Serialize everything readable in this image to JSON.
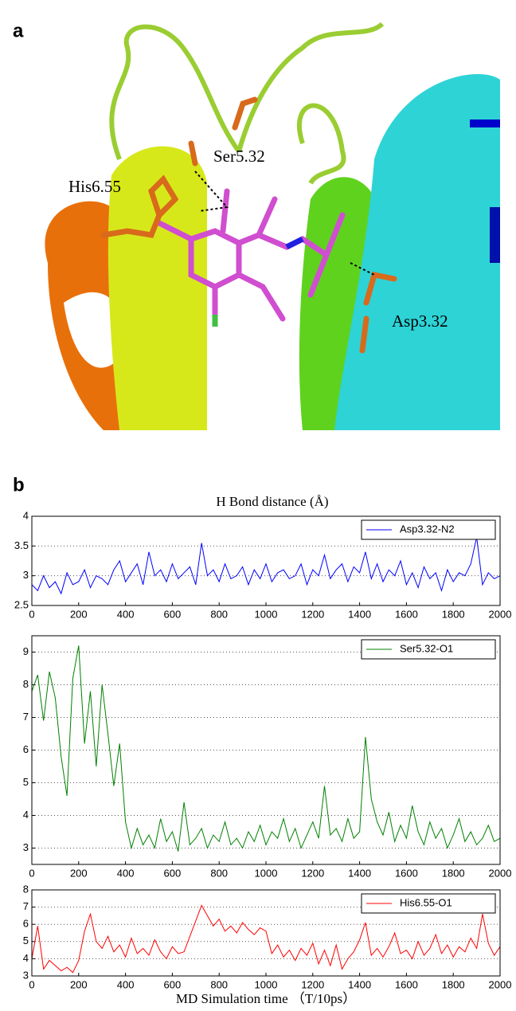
{
  "panel_a": {
    "label": "a",
    "annotations": [
      "Ser5.32",
      "His6.55",
      "Asp3.32"
    ]
  },
  "panel_b": {
    "label": "b"
  },
  "chart_data": [
    {
      "type": "line",
      "title": "H Bond distance (Å)",
      "x": [
        0,
        25,
        50,
        75,
        100,
        125,
        150,
        175,
        200,
        225,
        250,
        275,
        300,
        325,
        350,
        375,
        400,
        425,
        450,
        475,
        500,
        525,
        550,
        575,
        600,
        625,
        650,
        675,
        700,
        725,
        750,
        775,
        800,
        825,
        850,
        875,
        900,
        925,
        950,
        975,
        1000,
        1025,
        1050,
        1075,
        1100,
        1125,
        1150,
        1175,
        1200,
        1225,
        1250,
        1275,
        1300,
        1325,
        1350,
        1375,
        1400,
        1425,
        1450,
        1475,
        1500,
        1525,
        1550,
        1575,
        1600,
        1625,
        1650,
        1675,
        1700,
        1725,
        1750,
        1775,
        1800,
        1825,
        1850,
        1875,
        1900,
        1925,
        1950,
        1975,
        2000
      ],
      "xlim": [
        0,
        2000
      ],
      "xticks": [
        0,
        200,
        400,
        600,
        800,
        1000,
        1200,
        1400,
        1600,
        1800,
        2000
      ],
      "ylim": [
        2.5,
        4
      ],
      "yticks": [
        2.5,
        3,
        3.5,
        4
      ],
      "grid": true,
      "legend": "upper right",
      "series": [
        {
          "name": "Asp3.32-N2",
          "color": "#0000ff",
          "values": [
            2.85,
            2.75,
            3.0,
            2.8,
            2.9,
            2.7,
            3.05,
            2.85,
            2.9,
            3.1,
            2.8,
            3.0,
            2.95,
            2.85,
            3.1,
            3.25,
            2.9,
            3.05,
            3.2,
            2.85,
            3.4,
            3.0,
            3.1,
            2.9,
            3.2,
            2.95,
            3.05,
            3.15,
            2.85,
            3.55,
            3.0,
            3.1,
            2.9,
            3.2,
            2.95,
            3.0,
            3.15,
            2.85,
            3.1,
            2.95,
            3.2,
            2.9,
            3.05,
            3.1,
            2.95,
            3.0,
            3.2,
            2.85,
            3.1,
            3.0,
            3.35,
            2.95,
            3.1,
            3.2,
            2.9,
            3.15,
            3.05,
            3.4,
            2.95,
            3.2,
            2.9,
            3.1,
            3.0,
            3.25,
            2.85,
            3.05,
            2.8,
            3.15,
            2.95,
            3.05,
            2.75,
            3.1,
            2.9,
            3.05,
            3.0,
            3.2,
            3.65,
            2.85,
            3.05,
            2.95,
            3.0
          ]
        }
      ]
    },
    {
      "type": "line",
      "x": [
        0,
        25,
        50,
        75,
        100,
        125,
        150,
        175,
        200,
        225,
        250,
        275,
        300,
        325,
        350,
        375,
        400,
        425,
        450,
        475,
        500,
        525,
        550,
        575,
        600,
        625,
        650,
        675,
        700,
        725,
        750,
        775,
        800,
        825,
        850,
        875,
        900,
        925,
        950,
        975,
        1000,
        1025,
        1050,
        1075,
        1100,
        1125,
        1150,
        1175,
        1200,
        1225,
        1250,
        1275,
        1300,
        1325,
        1350,
        1375,
        1400,
        1425,
        1450,
        1475,
        1500,
        1525,
        1550,
        1575,
        1600,
        1625,
        1650,
        1675,
        1700,
        1725,
        1750,
        1775,
        1800,
        1825,
        1850,
        1875,
        1900,
        1925,
        1950,
        1975,
        2000
      ],
      "xlim": [
        0,
        2000
      ],
      "xticks": [
        0,
        200,
        400,
        600,
        800,
        1000,
        1200,
        1400,
        1600,
        1800,
        2000
      ],
      "ylim": [
        2.5,
        9.5
      ],
      "yticks": [
        3,
        4,
        5,
        6,
        7,
        8,
        9
      ],
      "grid": true,
      "legend": "upper right",
      "series": [
        {
          "name": "Ser5.32-O1",
          "color": "#008000",
          "values": [
            7.8,
            8.3,
            6.9,
            8.4,
            7.6,
            5.8,
            4.6,
            8.2,
            9.2,
            6.2,
            7.8,
            5.5,
            8.0,
            6.5,
            4.9,
            6.2,
            3.8,
            3.0,
            3.6,
            3.1,
            3.4,
            3.0,
            3.9,
            3.2,
            3.5,
            2.9,
            4.4,
            3.1,
            3.3,
            3.6,
            3.0,
            3.4,
            3.2,
            3.8,
            3.1,
            3.3,
            3.0,
            3.5,
            3.2,
            3.7,
            3.1,
            3.5,
            3.3,
            3.9,
            3.2,
            3.6,
            3.0,
            3.4,
            3.8,
            3.3,
            4.9,
            3.4,
            3.6,
            3.2,
            3.9,
            3.3,
            3.5,
            6.4,
            4.5,
            3.8,
            3.4,
            4.1,
            3.2,
            3.7,
            3.3,
            4.3,
            3.5,
            3.1,
            3.8,
            3.3,
            3.6,
            3.0,
            3.4,
            3.9,
            3.2,
            3.5,
            3.1,
            3.3,
            3.7,
            3.2,
            3.3
          ]
        }
      ]
    },
    {
      "type": "line",
      "x_label": "MD Simulation time （T/10ps）",
      "x": [
        0,
        25,
        50,
        75,
        100,
        125,
        150,
        175,
        200,
        225,
        250,
        275,
        300,
        325,
        350,
        375,
        400,
        425,
        450,
        475,
        500,
        525,
        550,
        575,
        600,
        625,
        650,
        675,
        700,
        725,
        750,
        775,
        800,
        825,
        850,
        875,
        900,
        925,
        950,
        975,
        1000,
        1025,
        1050,
        1075,
        1100,
        1125,
        1150,
        1175,
        1200,
        1225,
        1250,
        1275,
        1300,
        1325,
        1350,
        1375,
        1400,
        1425,
        1450,
        1475,
        1500,
        1525,
        1550,
        1575,
        1600,
        1625,
        1650,
        1675,
        1700,
        1725,
        1750,
        1775,
        1800,
        1825,
        1850,
        1875,
        1900,
        1925,
        1950,
        1975,
        2000
      ],
      "xlim": [
        0,
        2000
      ],
      "xticks": [
        0,
        200,
        400,
        600,
        800,
        1000,
        1200,
        1400,
        1600,
        1800,
        2000
      ],
      "ylim": [
        3,
        8
      ],
      "yticks": [
        3,
        4,
        5,
        6,
        7,
        8
      ],
      "grid": true,
      "legend": "upper right",
      "series": [
        {
          "name": "His6.55-O1",
          "color": "#ff0000",
          "values": [
            4.0,
            5.9,
            3.4,
            3.9,
            3.6,
            3.3,
            3.5,
            3.2,
            3.9,
            5.6,
            6.6,
            5.0,
            4.6,
            5.3,
            4.4,
            4.8,
            4.1,
            5.2,
            4.3,
            4.6,
            4.2,
            5.1,
            4.4,
            4.0,
            4.7,
            4.3,
            4.4,
            5.3,
            6.2,
            7.1,
            6.5,
            5.9,
            6.3,
            5.6,
            5.9,
            5.5,
            6.1,
            5.7,
            5.4,
            5.8,
            5.6,
            4.3,
            4.8,
            4.1,
            4.5,
            3.9,
            4.6,
            4.2,
            4.9,
            3.7,
            4.5,
            3.6,
            4.8,
            3.4,
            4.0,
            4.4,
            5.1,
            6.1,
            4.2,
            4.6,
            4.1,
            4.7,
            5.5,
            4.3,
            4.5,
            4.0,
            5.0,
            4.2,
            4.6,
            5.4,
            4.3,
            4.8,
            4.1,
            4.7,
            4.4,
            5.2,
            4.6,
            6.6,
            4.9,
            4.2,
            4.7
          ]
        }
      ]
    }
  ]
}
